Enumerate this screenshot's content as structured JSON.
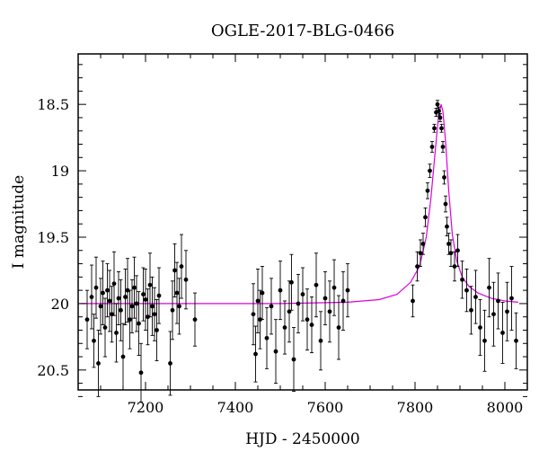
{
  "chart_data": {
    "type": "scatter",
    "title": "OGLE-2017-BLG-0466",
    "xlabel": "HJD - 2450000",
    "ylabel": "I magnitude",
    "xlim": [
      7050,
      8050
    ],
    "ylim": [
      20.65,
      18.12
    ],
    "y_inverted": true,
    "x_ticks": [
      7200,
      7400,
      7600,
      7800,
      8000
    ],
    "x_tick_labels": [
      "7200",
      "7400",
      "7600",
      "7800",
      "8000"
    ],
    "y_ticks": [
      18.5,
      19,
      19.5,
      20,
      20.5
    ],
    "y_tick_labels": [
      "18.5",
      "19",
      "19.5",
      "20",
      "20.5"
    ],
    "grid": false,
    "colors": {
      "data": "#000000",
      "model": "#dd00dd"
    },
    "series": [
      {
        "kind": "data_with_errorbars",
        "x": [
          7070,
          7080,
          7085,
          7090,
          7095,
          7100,
          7105,
          7110,
          7115,
          7120,
          7125,
          7130,
          7135,
          7140,
          7145,
          7150,
          7155,
          7160,
          7165,
          7170,
          7175,
          7180,
          7185,
          7190,
          7195,
          7200,
          7205,
          7210,
          7215,
          7220,
          7225,
          7230,
          7255,
          7260,
          7265,
          7270,
          7275,
          7280,
          7290,
          7310,
          7440,
          7445,
          7450,
          7455,
          7460,
          7470,
          7480,
          7490,
          7500,
          7510,
          7520,
          7525,
          7530,
          7540,
          7550,
          7560,
          7570,
          7580,
          7590,
          7600,
          7610,
          7620,
          7630,
          7640,
          7650,
          7795,
          7805,
          7812,
          7818,
          7823,
          7828,
          7833,
          7838,
          7843,
          7847,
          7850,
          7853,
          7856,
          7859,
          7862,
          7865,
          7868,
          7871,
          7875,
          7880,
          7888,
          7895,
          7905,
          7915,
          7925,
          7935,
          7945,
          7955,
          7965,
          7975,
          7985,
          7995,
          8005,
          8015,
          8025
        ],
        "y": [
          20.12,
          19.95,
          20.28,
          19.88,
          20.45,
          20.02,
          19.92,
          20.18,
          19.9,
          19.98,
          20.08,
          19.85,
          20.22,
          19.96,
          20.05,
          20.4,
          19.95,
          19.9,
          20.12,
          20.02,
          19.88,
          20.0,
          20.15,
          20.52,
          19.93,
          19.97,
          20.1,
          19.86,
          20.02,
          20.08,
          20.2,
          19.94,
          20.45,
          20.05,
          19.75,
          19.92,
          20.02,
          19.72,
          19.82,
          20.12,
          20.08,
          20.38,
          19.98,
          20.12,
          19.92,
          20.26,
          20.02,
          20.36,
          19.9,
          20.18,
          20.06,
          19.84,
          20.42,
          20.0,
          19.93,
          20.12,
          20.16,
          19.86,
          20.28,
          19.96,
          20.06,
          19.88,
          20.18,
          19.98,
          19.9,
          19.98,
          19.72,
          19.62,
          19.55,
          19.35,
          19.15,
          19.0,
          18.82,
          18.68,
          18.56,
          18.5,
          18.55,
          18.6,
          18.68,
          18.82,
          19.05,
          19.25,
          19.42,
          19.55,
          19.62,
          19.72,
          19.6,
          19.82,
          19.9,
          20.05,
          19.95,
          20.18,
          20.28,
          19.88,
          20.08,
          19.98,
          20.22,
          20.06,
          19.96,
          20.28
        ],
        "yerr": [
          0.22,
          0.24,
          0.2,
          0.23,
          0.25,
          0.21,
          0.24,
          0.22,
          0.2,
          0.23,
          0.21,
          0.24,
          0.22,
          0.2,
          0.23,
          0.25,
          0.21,
          0.24,
          0.22,
          0.2,
          0.23,
          0.21,
          0.24,
          0.22,
          0.2,
          0.23,
          0.21,
          0.24,
          0.22,
          0.2,
          0.23,
          0.21,
          0.24,
          0.22,
          0.2,
          0.23,
          0.21,
          0.24,
          0.22,
          0.2,
          0.23,
          0.21,
          0.24,
          0.22,
          0.2,
          0.23,
          0.21,
          0.24,
          0.22,
          0.2,
          0.23,
          0.21,
          0.24,
          0.22,
          0.2,
          0.23,
          0.21,
          0.24,
          0.22,
          0.2,
          0.23,
          0.21,
          0.24,
          0.22,
          0.2,
          0.12,
          0.11,
          0.1,
          0.08,
          0.07,
          0.06,
          0.05,
          0.04,
          0.03,
          0.03,
          0.03,
          0.03,
          0.03,
          0.03,
          0.04,
          0.05,
          0.06,
          0.07,
          0.08,
          0.1,
          0.11,
          0.12,
          0.14,
          0.16,
          0.18,
          0.2,
          0.21,
          0.23,
          0.22,
          0.24,
          0.21,
          0.23,
          0.22,
          0.24,
          0.21
        ]
      },
      {
        "kind": "model_curve",
        "x": [
          7055,
          7300,
          7500,
          7650,
          7720,
          7760,
          7790,
          7810,
          7825,
          7835,
          7845,
          7852,
          7858,
          7862,
          7868,
          7875,
          7883,
          7893,
          7905,
          7920,
          7940,
          7970,
          8000,
          8030
        ],
        "y": [
          20.0,
          20.0,
          20.0,
          19.99,
          19.97,
          19.93,
          19.84,
          19.72,
          19.5,
          19.22,
          18.85,
          18.6,
          18.5,
          18.55,
          18.78,
          19.15,
          19.48,
          19.68,
          19.8,
          19.87,
          19.92,
          19.96,
          19.98,
          19.99
        ]
      }
    ]
  }
}
